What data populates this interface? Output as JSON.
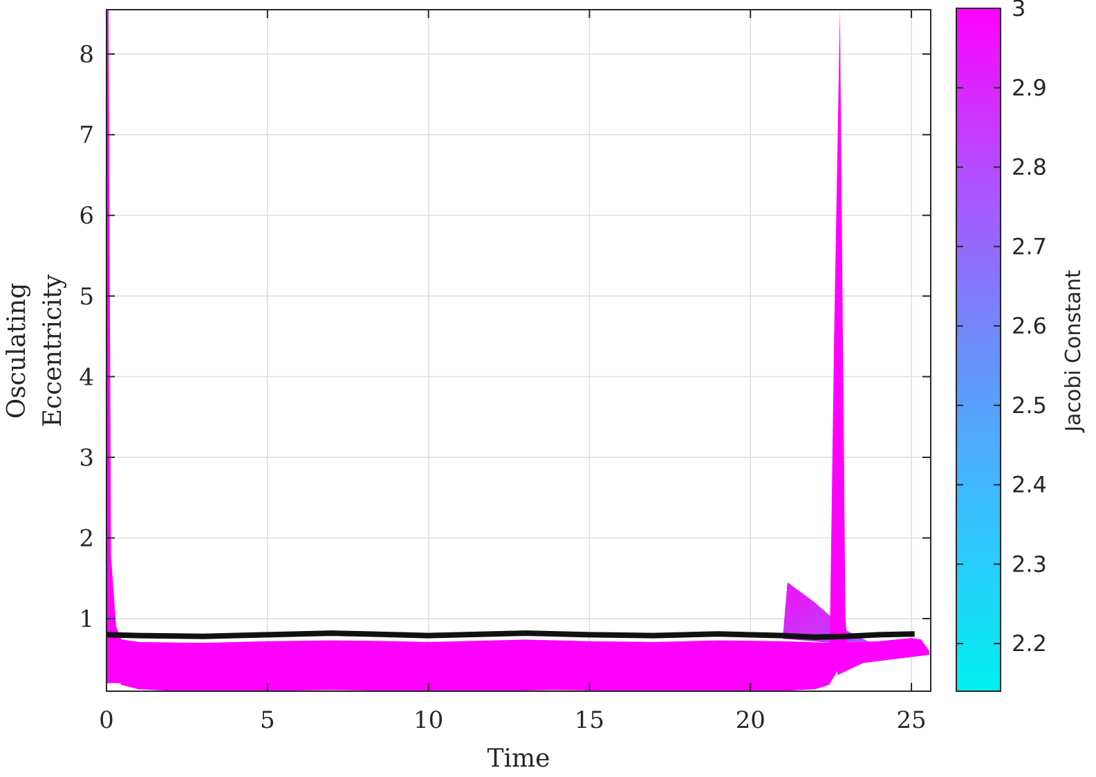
{
  "chart_data": {
    "type": "line",
    "xlabel": "Time",
    "ylabel_lines": [
      "Osculating",
      "Eccentricity"
    ],
    "xlim": [
      0,
      25.6
    ],
    "ylim": [
      0.1,
      8.55
    ],
    "xticks": [
      0,
      5,
      10,
      15,
      20,
      25
    ],
    "yticks": [
      1,
      2,
      3,
      4,
      5,
      6,
      7,
      8
    ],
    "grid": true,
    "colorbar": {
      "label": "Jacobi Constant",
      "range": [
        2.14,
        3.0
      ],
      "ticks": [
        2.2,
        2.3,
        2.4,
        2.5,
        2.6,
        2.7,
        2.8,
        2.9,
        3
      ],
      "color_low": "#00f0f0",
      "color_mid": "#6a8ff8",
      "color_high": "#ff00ff"
    },
    "bands": [
      {
        "name": "low-jacobi-edge",
        "color": "#3cc8f8",
        "x": [
          0,
          0.5,
          1,
          3,
          5,
          7,
          9,
          10,
          12,
          13,
          15,
          17,
          19,
          21,
          22.5,
          24,
          25,
          25.3,
          25.55
        ],
        "y": [
          0.78,
          0.74,
          0.71,
          0.7,
          0.72,
          0.73,
          0.72,
          0.71,
          0.73,
          0.74,
          0.72,
          0.71,
          0.73,
          0.72,
          0.7,
          0.72,
          0.76,
          0.74,
          0.6
        ]
      },
      {
        "name": "high-jacobi-edge",
        "color": "#ff00ff",
        "x": [
          0,
          0.08,
          0.2,
          0.5,
          1,
          2,
          3,
          5,
          7,
          9,
          10,
          12,
          14,
          16,
          18,
          20,
          21,
          22,
          22.4,
          22.7
        ],
        "y": [
          8.55,
          1.5,
          0.4,
          0.2,
          0.15,
          0.13,
          0.12,
          0.13,
          0.14,
          0.13,
          0.12,
          0.13,
          0.14,
          0.13,
          0.12,
          0.12,
          0.13,
          0.15,
          0.2,
          0.4
        ]
      },
      {
        "name": "upper-plume",
        "color": "#e020f8",
        "x": [
          21,
          21.15,
          22,
          23,
          24,
          25,
          25.55
        ],
        "y": [
          0.75,
          1.45,
          1.2,
          0.85,
          0.65,
          0.6,
          0.58
        ]
      }
    ],
    "spike": {
      "color": "#ff00ff",
      "x": [
        22.45,
        22.6,
        22.78,
        22.95,
        23.05
      ],
      "y": [
        0.3,
        4.5,
        8.55,
        1.0,
        0.5
      ]
    },
    "reference_line": {
      "color": "#111111",
      "x": [
        0,
        1,
        3,
        5,
        7,
        9,
        10,
        12,
        13,
        15,
        17,
        19,
        21,
        22,
        23,
        24,
        25.1
      ],
      "y": [
        0.8,
        0.79,
        0.78,
        0.8,
        0.82,
        0.8,
        0.79,
        0.81,
        0.82,
        0.8,
        0.79,
        0.81,
        0.79,
        0.77,
        0.78,
        0.8,
        0.81
      ]
    }
  }
}
